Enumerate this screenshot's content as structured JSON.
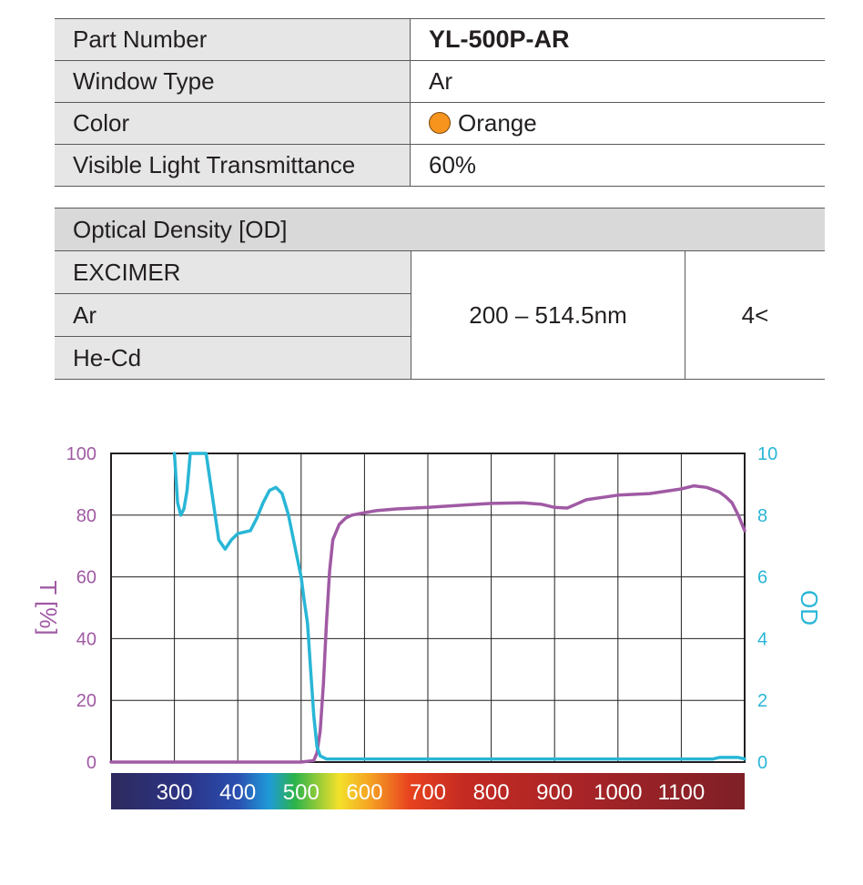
{
  "specs": {
    "part_number_label": "Part Number",
    "part_number_value": "YL-500P-AR",
    "window_type_label": "Window Type",
    "window_type_value": "Ar",
    "color_label": "Color",
    "color_value": "Orange",
    "color_swatch": "#f7941d",
    "vlt_label": "Visible Light Transmittance",
    "vlt_value": "60%"
  },
  "optical_density": {
    "header": "Optical Density [OD]",
    "lasers": [
      "EXCIMER",
      "Ar",
      "He-Cd"
    ],
    "range": "200 – 514.5nm",
    "value": "4<"
  },
  "chart_data": {
    "type": "line",
    "x_ticks": [
      "300",
      "400",
      "500",
      "600",
      "700",
      "800",
      "900",
      "1000",
      "1100"
    ],
    "xlim": [
      200,
      1200
    ],
    "ylabel_left": "T [%]",
    "ylim_left": [
      0,
      100
    ],
    "yticks_left": [
      "0",
      "20",
      "40",
      "60",
      "80",
      "100"
    ],
    "ylabel_right": "OD",
    "ylim_right": [
      0,
      10
    ],
    "yticks_right": [
      "0",
      "2",
      "4",
      "6",
      "8",
      "10"
    ],
    "grid": true,
    "colors": {
      "transmittance": "#a05aa4",
      "od": "#29b6d6"
    },
    "series": [
      {
        "axis": "left",
        "x": [
          200,
          300,
          420,
          500,
          520,
          525,
          530,
          535,
          540,
          545,
          550,
          560,
          570,
          580,
          600,
          620,
          650,
          700,
          750,
          800,
          850,
          880,
          900,
          920,
          950,
          1000,
          1050,
          1100,
          1120,
          1140,
          1160,
          1170,
          1180,
          1190,
          1200
        ],
        "y": [
          0,
          0,
          0,
          0,
          0.5,
          3,
          10,
          25,
          45,
          62,
          72,
          77,
          79,
          80,
          80.8,
          81.5,
          82,
          82.5,
          83.2,
          83.8,
          84,
          83.5,
          82.5,
          82.3,
          85,
          86.5,
          87,
          88.5,
          89.5,
          89,
          87.5,
          86,
          84,
          80,
          75
        ]
      },
      {
        "axis": "right",
        "x": [
          300,
          305,
          310,
          315,
          320,
          325,
          330,
          335,
          350,
          370,
          380,
          390,
          400,
          420,
          430,
          440,
          450,
          460,
          470,
          480,
          490,
          500,
          505,
          510,
          515,
          520,
          525,
          530,
          540,
          560,
          600,
          700,
          800,
          900,
          1000,
          1100,
          1150,
          1160,
          1190,
          1200
        ],
        "y": [
          10,
          8.4,
          8.0,
          8.2,
          8.8,
          10,
          10,
          10,
          10,
          7.2,
          6.9,
          7.2,
          7.4,
          7.5,
          7.9,
          8.4,
          8.8,
          8.9,
          8.7,
          8.0,
          7.0,
          6.0,
          5.2,
          4.5,
          3.0,
          1.5,
          0.5,
          0.2,
          0.1,
          0.1,
          0.1,
          0.1,
          0.1,
          0.1,
          0.1,
          0.1,
          0.1,
          0.15,
          0.15,
          0.1
        ]
      }
    ]
  }
}
